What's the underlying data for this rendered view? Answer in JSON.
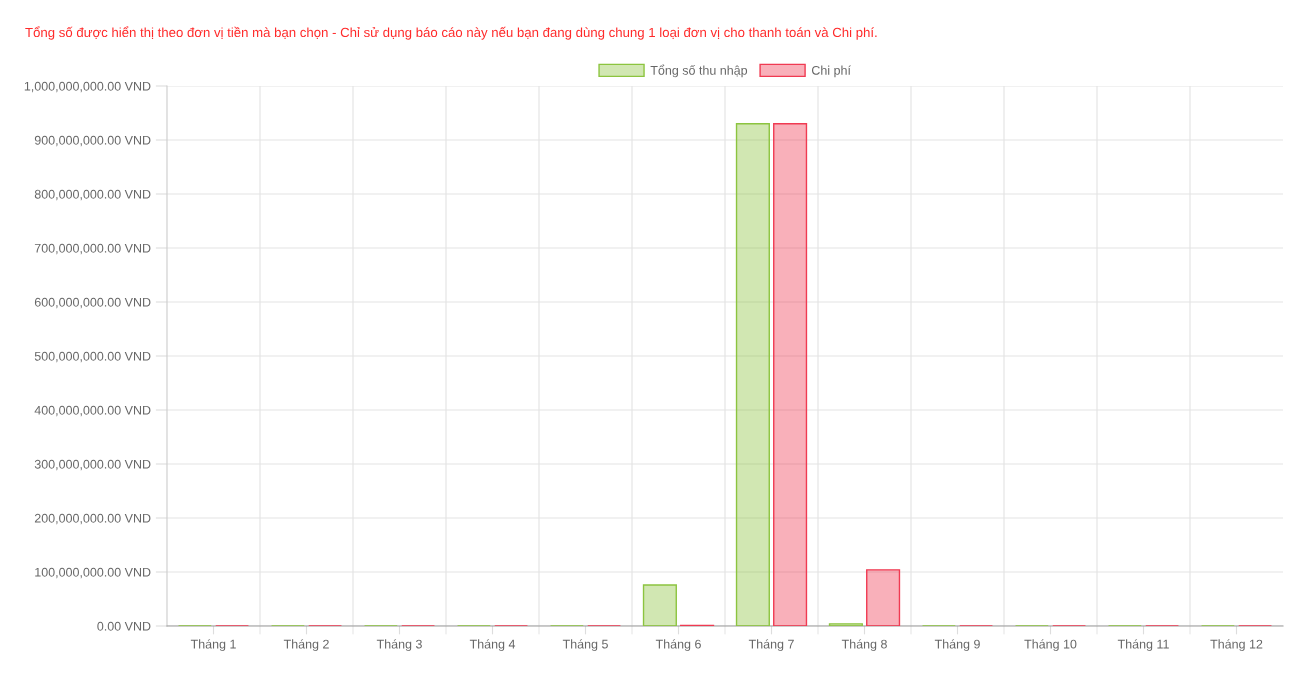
{
  "chart_data": {
    "type": "bar",
    "title": "Tổng số được hiển thị theo đơn vị tiền mà bạn chọn - Chỉ sử dụng báo cáo này nếu bạn đang dùng chung 1 loại đơn vị cho thanh toán và Chi phí.",
    "categories": [
      "Tháng 1",
      "Tháng 2",
      "Tháng 3",
      "Tháng 4",
      "Tháng 5",
      "Tháng 6",
      "Tháng 7",
      "Tháng 8",
      "Tháng 9",
      "Tháng 10",
      "Tháng 11",
      "Tháng 12"
    ],
    "series": [
      {
        "name": "Tổng số thu nhập",
        "color": "#8cc43f",
        "values": [
          0,
          0,
          0,
          0,
          0,
          76000000,
          930000000,
          4000000,
          0,
          0,
          0,
          0
        ]
      },
      {
        "name": "Chi phí",
        "color": "#f03a52",
        "values": [
          0,
          0,
          0,
          0,
          0,
          1000000,
          930000000,
          104000000,
          0,
          0,
          0,
          0
        ]
      }
    ],
    "ylim": [
      0,
      1000000000
    ],
    "yticks": [
      {
        "value": 0,
        "label": "0.00 VND"
      },
      {
        "value": 100000000,
        "label": "100,000,000.00 VND"
      },
      {
        "value": 200000000,
        "label": "200,000,000.00 VND"
      },
      {
        "value": 300000000,
        "label": "300,000,000.00 VND"
      },
      {
        "value": 400000000,
        "label": "400,000,000.00 VND"
      },
      {
        "value": 500000000,
        "label": "500,000,000.00 VND"
      },
      {
        "value": 600000000,
        "label": "600,000,000.00 VND"
      },
      {
        "value": 700000000,
        "label": "700,000,000.00 VND"
      },
      {
        "value": 800000000,
        "label": "800,000,000.00 VND"
      },
      {
        "value": 900000000,
        "label": "900,000,000.00 VND"
      },
      {
        "value": 1000000000,
        "label": "1,000,000,000.00 VND"
      }
    ],
    "grid": true,
    "legend": "top"
  }
}
